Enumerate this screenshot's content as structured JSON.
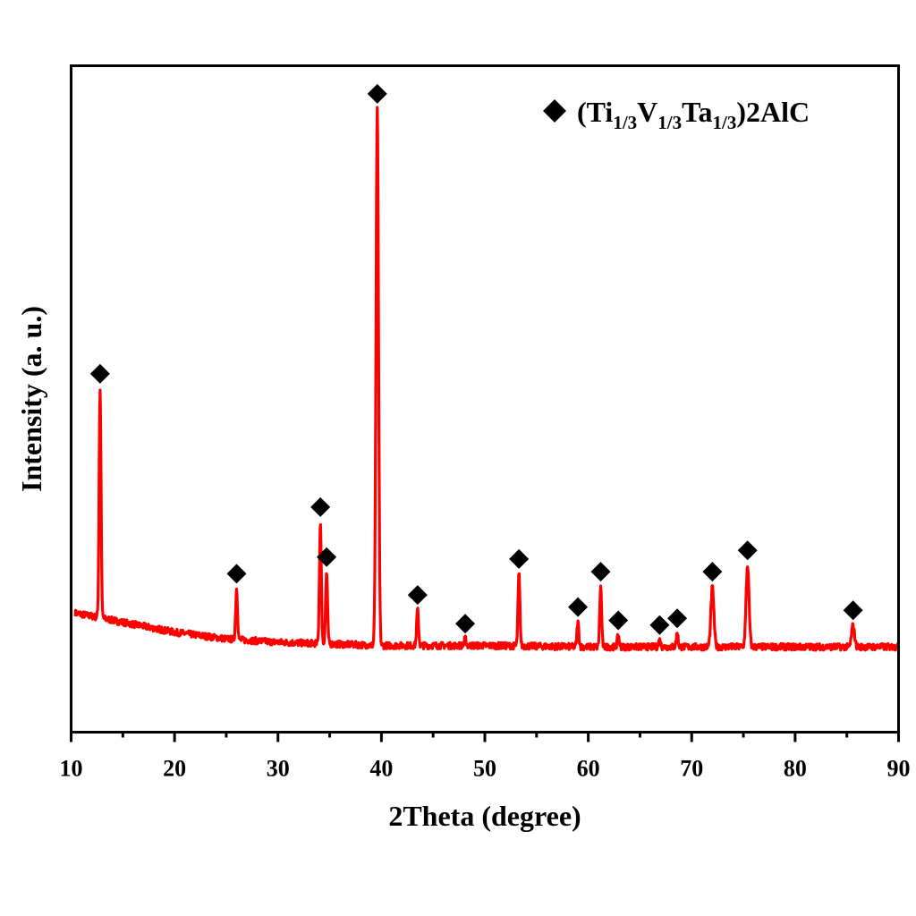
{
  "chart_data": {
    "type": "line",
    "title": "",
    "xlabel": "2Theta (degree)",
    "ylabel": "Intensity (a. u.)",
    "xlim": [
      10,
      90
    ],
    "ylim": [
      0,
      100
    ],
    "xticks": [
      10,
      20,
      30,
      40,
      50,
      60,
      70,
      80,
      90
    ],
    "xtick_labels": [
      "10",
      "20",
      "30",
      "40",
      "50",
      "60",
      "70",
      "80",
      "90"
    ],
    "minor_xticks": [
      15,
      25,
      35,
      45,
      55,
      65,
      75,
      85
    ],
    "yticks_visible": false,
    "grid": false,
    "legend_position": "upper right",
    "series": [
      {
        "name": "(Ti1/3V1/3Ta1/3)2AlC",
        "color": "#ff0000",
        "baseline": [
          [
            10,
            18.0
          ],
          [
            15,
            16.5
          ],
          [
            20,
            15.0
          ],
          [
            25,
            14.0
          ],
          [
            30,
            13.5
          ],
          [
            40,
            13.0
          ],
          [
            50,
            13.0
          ],
          [
            60,
            12.8
          ],
          [
            70,
            12.8
          ],
          [
            80,
            12.8
          ],
          [
            90,
            12.8
          ]
        ],
        "peaks": [
          {
            "two_theta": 12.8,
            "intensity": 51.5,
            "marked": true
          },
          {
            "two_theta": 26.0,
            "intensity": 21.5,
            "marked": true
          },
          {
            "two_theta": 34.1,
            "intensity": 31.5,
            "marked": true
          },
          {
            "two_theta": 34.7,
            "intensity": 24.0,
            "marked": true
          },
          {
            "two_theta": 39.6,
            "intensity": 93.5,
            "marked": true
          },
          {
            "two_theta": 43.5,
            "intensity": 18.3,
            "marked": true
          },
          {
            "two_theta": 48.1,
            "intensity": 14.0,
            "marked": true
          },
          {
            "two_theta": 53.3,
            "intensity": 23.7,
            "marked": true
          },
          {
            "two_theta": 59.0,
            "intensity": 16.5,
            "marked": true
          },
          {
            "two_theta": 61.2,
            "intensity": 21.8,
            "marked": true
          },
          {
            "two_theta": 62.9,
            "intensity": 14.5,
            "marked": true
          },
          {
            "two_theta": 66.9,
            "intensity": 13.8,
            "marked": true
          },
          {
            "two_theta": 68.6,
            "intensity": 14.8,
            "marked": true
          },
          {
            "two_theta": 72.0,
            "intensity": 21.8,
            "marked": true
          },
          {
            "two_theta": 75.4,
            "intensity": 25.0,
            "marked": true
          },
          {
            "two_theta": 85.6,
            "intensity": 16.0,
            "marked": true
          }
        ]
      }
    ],
    "legend": [
      {
        "marker": "diamond",
        "label": "(Ti1/3V1/3Ta1/3)2AlC"
      }
    ],
    "annotations": [
      {
        "type": "diamond-marker",
        "meaning": "(Ti1/3V1/3Ta1/3)2AlC phase peak"
      }
    ]
  },
  "legend": {
    "parts": [
      "(Ti",
      "1/3",
      "V",
      "1/3",
      "Ta",
      "1/3",
      ")2AlC"
    ]
  },
  "axes": {
    "xlabel": "2Theta (degree)",
    "ylabel": "Intensity (a. u.)",
    "xtick_labels": [
      "10",
      "20",
      "30",
      "40",
      "50",
      "60",
      "70",
      "80",
      "90"
    ]
  },
  "colors": {
    "series": "#ff0000",
    "marker": "#000000",
    "axis": "#000000"
  }
}
